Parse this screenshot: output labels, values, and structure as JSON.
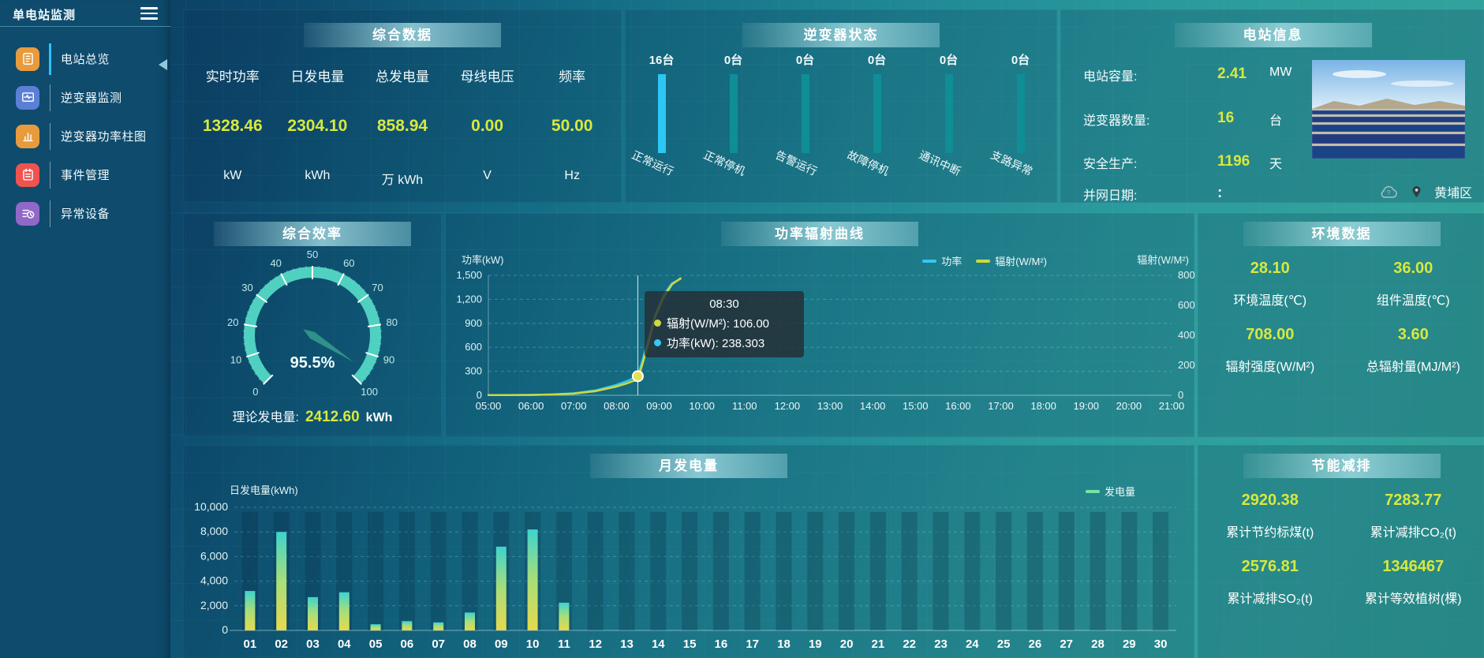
{
  "app": {
    "title": "单电站监测"
  },
  "colors": {
    "accent_yellow": "#d8e83f",
    "power_line": "#35c8f0",
    "radiation_line": "#cdd93f",
    "status_bar_highlight": "#2ec6f5",
    "status_bar": "#0f8e95",
    "bar_gradient_bottom": "#e6d94c",
    "bar_gradient_mid": "#a8de79",
    "bar_gradient_top": "#3ed3cd",
    "legend_generation": "#74e6a4",
    "gauge_band": "#4fd0c0",
    "gauge_needle": "#2e9288"
  },
  "sidebar": {
    "items": [
      {
        "label": "电站总览",
        "icon": "station-overview",
        "icon_bg": "#e89b3c",
        "active": true
      },
      {
        "label": "逆变器监测",
        "icon": "inverter-monitor",
        "icon_bg": "#5b7fd6",
        "active": false
      },
      {
        "label": "逆变器功率柱图",
        "icon": "inverter-power-bars",
        "icon_bg": "#e89b3c",
        "active": false
      },
      {
        "label": "事件管理",
        "icon": "event-management",
        "icon_bg": "#ef5350",
        "active": false
      },
      {
        "label": "异常设备",
        "icon": "abnormal-device",
        "icon_bg": "#9168c8",
        "active": false
      }
    ]
  },
  "panels": {
    "summary": {
      "title": "综合数据",
      "metrics": [
        {
          "label": "实时功率",
          "value": "1328.46",
          "unit": "kW"
        },
        {
          "label": "日发电量",
          "value": "2304.10",
          "unit": "kWh"
        },
        {
          "label": "总发电量",
          "value": "858.94",
          "unit": "万 kWh"
        },
        {
          "label": "母线电压",
          "value": "0.00",
          "unit": "V"
        },
        {
          "label": "频率",
          "value": "50.00",
          "unit": "Hz"
        }
      ]
    },
    "inverter_status": {
      "title": "逆变器状态"
    },
    "station_info": {
      "title": "电站信息",
      "rows": [
        {
          "label": "电站容量:",
          "value": "2.41",
          "unit": "MW",
          "plain": false
        },
        {
          "label": "逆变器数量:",
          "value": "16",
          "unit": "台",
          "plain": false
        },
        {
          "label": "安全生产:",
          "value": "1196",
          "unit": "天",
          "plain": false
        },
        {
          "label": "并网日期:",
          "value": ":",
          "unit": "",
          "plain": true
        }
      ],
      "location": "黄埔区"
    },
    "efficiency": {
      "title": "综合效率",
      "gauge": {
        "display": "95.5%"
      },
      "theoretical": {
        "label": "理论发电量:",
        "value": "2412.60",
        "unit": "kWh"
      }
    },
    "power_curve": {
      "title": "功率辐射曲线"
    },
    "environment": {
      "title": "环境数据",
      "metrics": [
        {
          "value": "28.10",
          "label": "环境温度(℃)"
        },
        {
          "value": "36.00",
          "label": "组件温度(℃)"
        },
        {
          "value": "708.00",
          "label": "辐射强度(W/M²)"
        },
        {
          "value": "3.60",
          "label": "总辐射量(MJ/M²)"
        }
      ]
    },
    "monthly": {
      "title": "月发电量"
    },
    "savings": {
      "title": "节能减排",
      "metrics": [
        {
          "value": "2920.38",
          "label": "累计节约标煤(t)"
        },
        {
          "value": "7283.77",
          "label": "累计减排CO₂(t)"
        },
        {
          "value": "2576.81",
          "label": "累计减排SO₂(t)"
        },
        {
          "value": "1346467",
          "label": "累计等效植树(棵)"
        }
      ]
    }
  },
  "chart_data": [
    {
      "id": "power_radiation",
      "type": "line",
      "title": "功率辐射曲线",
      "x_labels": [
        "05:00",
        "06:00",
        "07:00",
        "08:00",
        "09:00",
        "10:00",
        "11:00",
        "12:00",
        "13:00",
        "14:00",
        "15:00",
        "16:00",
        "17:00",
        "18:00",
        "19:00",
        "20:00",
        "21:00"
      ],
      "x_range": [
        5,
        21
      ],
      "left_axis": {
        "label": "功率(kW)",
        "ticks": [
          "0",
          "300",
          "600",
          "900",
          "1,200",
          "1,500"
        ],
        "max": 1500
      },
      "right_axis": {
        "label": "辐射(W/M²)",
        "ticks": [
          "0",
          "200",
          "400",
          "600",
          "800"
        ],
        "max": 800
      },
      "legend": [
        {
          "name": "功率",
          "color": "#35c8f0"
        },
        {
          "name": "辐射(W/M²)",
          "color": "#cdd93f"
        }
      ],
      "series": [
        {
          "name": "功率",
          "axis": "left",
          "color": "#35c8f0",
          "points": [
            [
              5,
              2
            ],
            [
              5.5,
              3
            ],
            [
              6,
              5
            ],
            [
              6.5,
              10
            ],
            [
              7,
              25
            ],
            [
              7.5,
              60
            ],
            [
              8,
              130
            ],
            [
              8.25,
              178
            ],
            [
              8.5,
              238.303
            ],
            [
              8.6,
              420
            ],
            [
              8.75,
              700
            ],
            [
              8.9,
              1000
            ],
            [
              9.1,
              1250
            ],
            [
              9.3,
              1400
            ],
            [
              9.5,
              1455
            ]
          ]
        },
        {
          "name": "辐射",
          "axis": "right",
          "color": "#cdd93f",
          "points": [
            [
              5,
              1
            ],
            [
              5.5,
              1
            ],
            [
              6,
              2
            ],
            [
              6.5,
              5
            ],
            [
              7,
              11
            ],
            [
              7.5,
              27
            ],
            [
              8,
              58
            ],
            [
              8.25,
              80
            ],
            [
              8.5,
              106
            ],
            [
              8.6,
              200
            ],
            [
              8.75,
              350
            ],
            [
              8.9,
              520
            ],
            [
              9.1,
              650
            ],
            [
              9.3,
              740
            ],
            [
              9.5,
              780
            ]
          ]
        }
      ],
      "tooltip": {
        "time": "08:30",
        "x": 8.5,
        "marker_value_kw": 238.303,
        "lines": [
          {
            "color": "#cdd93f",
            "text": "辐射(W/M²): 106.00"
          },
          {
            "color": "#35c8f0",
            "text": "功率(kW): 238.303"
          }
        ]
      }
    },
    {
      "id": "monthly_generation",
      "type": "bar",
      "title": "月发电量",
      "ylabel": "日发电量(kWh)",
      "yticks": [
        "0",
        "2,000",
        "4,000",
        "6,000",
        "8,000",
        "10,000"
      ],
      "ymax": 10000,
      "categories": [
        "01",
        "02",
        "03",
        "04",
        "05",
        "06",
        "07",
        "08",
        "09",
        "10",
        "11",
        "12",
        "13",
        "14",
        "15",
        "16",
        "17",
        "18",
        "19",
        "20",
        "21",
        "22",
        "23",
        "24",
        "25",
        "26",
        "27",
        "28",
        "29",
        "30"
      ],
      "values": [
        3200,
        8000,
        2700,
        3100,
        500,
        750,
        650,
        1450,
        6800,
        8200,
        2250,
        0,
        0,
        0,
        0,
        0,
        0,
        0,
        0,
        0,
        0,
        0,
        0,
        0,
        0,
        0,
        0,
        0,
        0,
        0
      ],
      "legend": [
        {
          "name": "发电量",
          "color": "#74e6a4"
        }
      ]
    },
    {
      "id": "efficiency_gauge",
      "type": "gauge",
      "min": 0,
      "max": 100,
      "value": 95.5,
      "display": "95.5%",
      "tick_labels": [
        "0",
        "10",
        "20",
        "30",
        "40",
        "50",
        "60",
        "70",
        "80",
        "90",
        "100"
      ]
    },
    {
      "id": "inverter_status",
      "type": "bar",
      "title": "逆变器状态",
      "unit": "台",
      "categories": [
        "正常运行",
        "正常停机",
        "告警运行",
        "故障停机",
        "通讯中断",
        "支路异常"
      ],
      "values": [
        16,
        0,
        0,
        0,
        0,
        0
      ],
      "counts": [
        "16台",
        "0台",
        "0台",
        "0台",
        "0台",
        "0台"
      ]
    }
  ]
}
